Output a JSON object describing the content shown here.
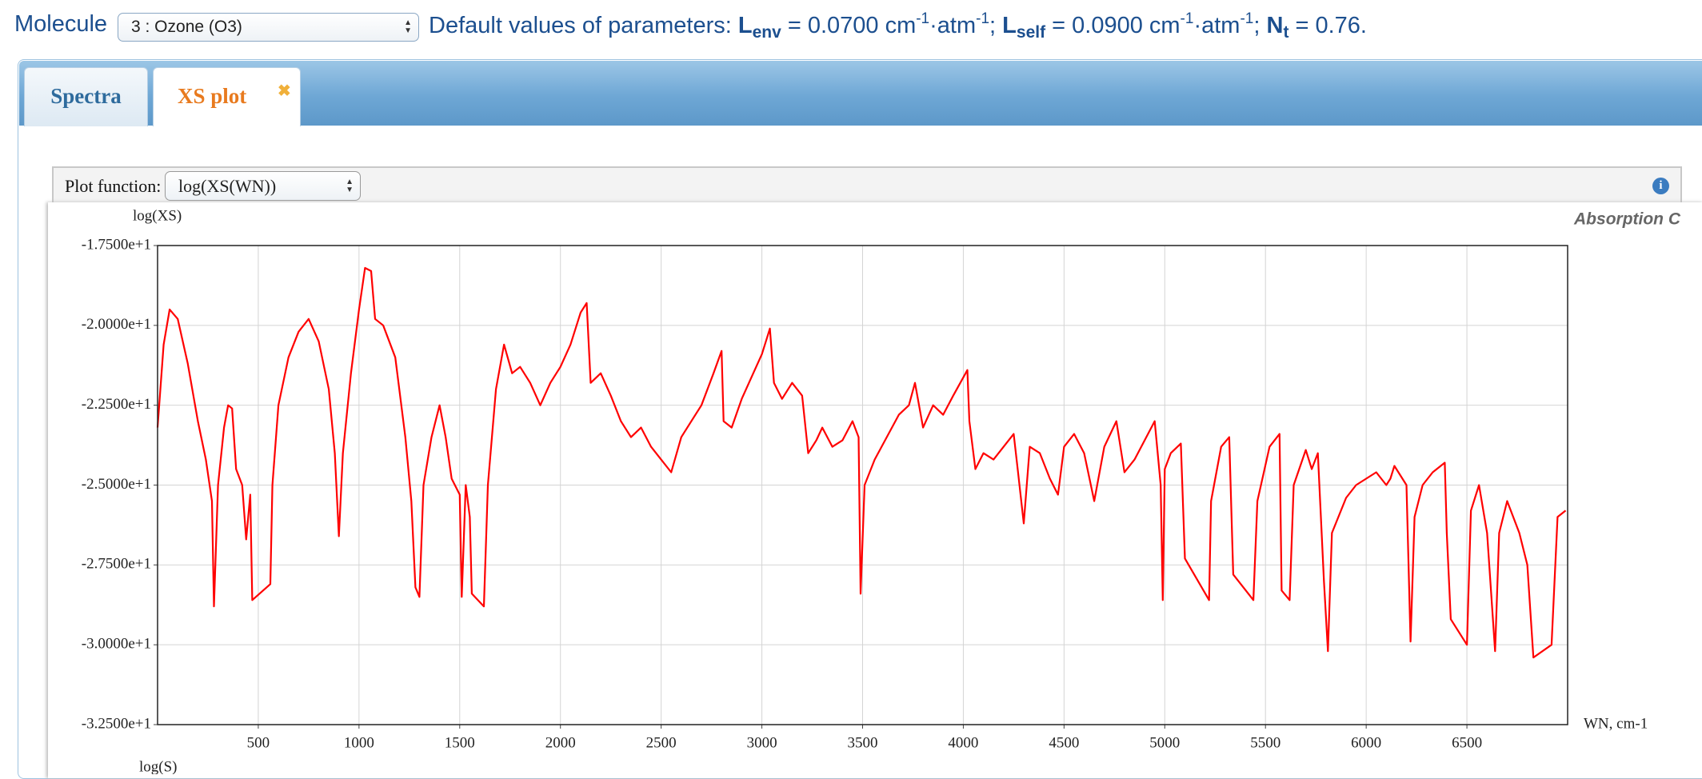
{
  "header": {
    "label": "Molecule",
    "molecule": "3 : Ozone (O3)",
    "parameters": [
      "Default values of parameters: ",
      "L",
      "env",
      " = 0.0700 cm",
      "-1",
      "·atm",
      "-1",
      "; ",
      "L",
      "self",
      " = 0.0900 cm",
      "-1",
      "·atm",
      "-1",
      "; ",
      "N",
      "t",
      " = 0.76."
    ]
  },
  "tabs": [
    "Spectra",
    "XS plot"
  ],
  "plot_function": {
    "label": "Plot function:",
    "value": "log(XS(WN))"
  },
  "next_panel_label": "log(S)",
  "chart_data": {
    "type": "line",
    "title": "Absorption C",
    "ylabel": "log(XS)",
    "xlabel": "WN, cm-1",
    "color": "#ff0000",
    "grid": true,
    "xlim": [
      0,
      7000
    ],
    "xticks": [
      500,
      1000,
      1500,
      2000,
      2500,
      3000,
      3500,
      4000,
      4500,
      5000,
      5500,
      6000,
      6500
    ],
    "ylim": [
      -32.5,
      -17.5
    ],
    "yticks": [
      {
        "value": -17.5,
        "label": "-1.7500e+1"
      },
      {
        "value": -20,
        "label": "-2.0000e+1"
      },
      {
        "value": -22.5,
        "label": "-2.2500e+1"
      },
      {
        "value": -25,
        "label": "-2.5000e+1"
      },
      {
        "value": -27.5,
        "label": "-2.7500e+1"
      },
      {
        "value": -30,
        "label": "-3.0000e+1"
      },
      {
        "value": -32.5,
        "label": "-3.2500e+1"
      }
    ],
    "x": [
      0,
      30,
      60,
      100,
      150,
      200,
      240,
      270,
      280,
      300,
      330,
      350,
      370,
      390,
      420,
      440,
      460,
      470,
      560,
      570,
      600,
      650,
      700,
      750,
      800,
      850,
      880,
      900,
      920,
      960,
      1000,
      1030,
      1060,
      1080,
      1120,
      1180,
      1230,
      1260,
      1280,
      1300,
      1320,
      1360,
      1400,
      1430,
      1460,
      1500,
      1510,
      1530,
      1550,
      1560,
      1620,
      1640,
      1680,
      1720,
      1760,
      1800,
      1850,
      1900,
      1950,
      2000,
      2050,
      2100,
      2130,
      2150,
      2200,
      2250,
      2300,
      2350,
      2400,
      2450,
      2500,
      2550,
      2600,
      2650,
      2700,
      2760,
      2800,
      2810,
      2850,
      2900,
      2950,
      3000,
      3040,
      3060,
      3100,
      3150,
      3200,
      3230,
      3270,
      3300,
      3350,
      3400,
      3450,
      3480,
      3490,
      3510,
      3560,
      3620,
      3680,
      3730,
      3760,
      3800,
      3850,
      3900,
      3950,
      4020,
      4030,
      4060,
      4100,
      4150,
      4200,
      4250,
      4270,
      4300,
      4330,
      4380,
      4430,
      4470,
      4500,
      4550,
      4600,
      4650,
      4700,
      4760,
      4800,
      4850,
      4900,
      4950,
      4980,
      4990,
      5000,
      5030,
      5080,
      5100,
      5220,
      5230,
      5280,
      5320,
      5340,
      5440,
      5460,
      5520,
      5570,
      5580,
      5620,
      5640,
      5700,
      5730,
      5760,
      5790,
      5810,
      5830,
      5900,
      5950,
      6000,
      6050,
      6100,
      6120,
      6140,
      6200,
      6220,
      6240,
      6280,
      6330,
      6390,
      6400,
      6420,
      6500,
      6520,
      6560,
      6600,
      6640,
      6660,
      6700,
      6760,
      6800,
      6830,
      6920,
      6950,
      6990
    ],
    "values": [
      -23.2,
      -20.6,
      -19.5,
      -19.8,
      -21.2,
      -23.0,
      -24.2,
      -25.5,
      -28.8,
      -25.0,
      -23.2,
      -22.5,
      -22.6,
      -24.5,
      -25.0,
      -26.7,
      -25.3,
      -28.6,
      -28.1,
      -25.0,
      -22.5,
      -21.0,
      -20.2,
      -19.8,
      -20.5,
      -22.0,
      -24.0,
      -26.6,
      -24.0,
      -21.5,
      -19.5,
      -18.2,
      -18.3,
      -19.8,
      -20.0,
      -21.0,
      -23.5,
      -25.5,
      -28.2,
      -28.5,
      -25.0,
      -23.5,
      -22.5,
      -23.5,
      -24.8,
      -25.3,
      -28.5,
      -25.0,
      -26.0,
      -28.4,
      -28.8,
      -25.0,
      -22.0,
      -20.6,
      -21.5,
      -21.3,
      -21.8,
      -22.5,
      -21.8,
      -21.3,
      -20.6,
      -19.6,
      -19.3,
      -21.8,
      -21.5,
      -22.2,
      -23.0,
      -23.5,
      -23.2,
      -23.8,
      -24.2,
      -24.6,
      -23.5,
      -23.0,
      -22.5,
      -21.5,
      -20.8,
      -23.0,
      -23.2,
      -22.3,
      -21.6,
      -20.9,
      -20.1,
      -21.8,
      -22.3,
      -21.8,
      -22.2,
      -24.0,
      -23.6,
      -23.2,
      -23.8,
      -23.6,
      -23.0,
      -23.5,
      -28.4,
      -25.0,
      -24.2,
      -23.5,
      -22.8,
      -22.5,
      -21.8,
      -23.2,
      -22.5,
      -22.8,
      -22.2,
      -21.4,
      -23.0,
      -24.5,
      -24.0,
      -24.2,
      -23.8,
      -23.4,
      -24.5,
      -26.2,
      -23.8,
      -24.0,
      -24.8,
      -25.3,
      -23.8,
      -23.4,
      -24.0,
      -25.5,
      -23.8,
      -23.0,
      -24.6,
      -24.2,
      -23.6,
      -23.0,
      -25.0,
      -28.6,
      -24.5,
      -24.0,
      -23.7,
      -27.3,
      -28.6,
      -25.5,
      -23.8,
      -23.5,
      -27.8,
      -28.6,
      -25.5,
      -23.8,
      -23.4,
      -28.3,
      -28.6,
      -25.0,
      -23.9,
      -24.5,
      -24.0,
      -28.0,
      -30.2,
      -26.5,
      -25.4,
      -25.0,
      -24.8,
      -24.6,
      -25.0,
      -24.8,
      -24.4,
      -25.0,
      -29.9,
      -26.0,
      -25.0,
      -24.6,
      -24.3,
      -26.5,
      -29.2,
      -30.0,
      -25.8,
      -25.0,
      -26.5,
      -30.2,
      -26.5,
      -25.5,
      -26.5,
      -27.5,
      -30.4,
      -30.0,
      -26.0,
      -25.8
    ]
  }
}
